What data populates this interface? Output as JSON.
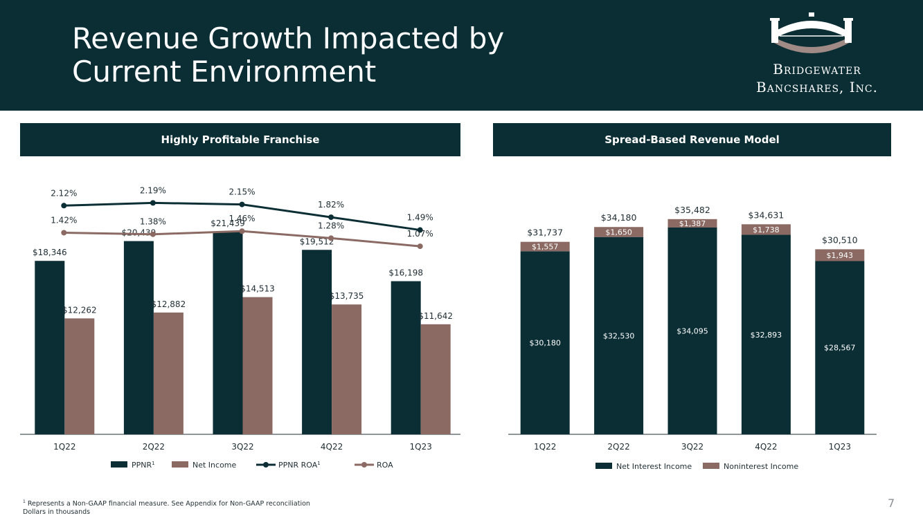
{
  "slide": {
    "title_line1": "Revenue Growth Impacted by",
    "title_line2": "Current Environment",
    "page_number": "7",
    "footnote_line1": "Represents a Non-GAAP financial measure. See Appendix for Non-GAAP reconciliation",
    "footnote_marker": "1",
    "footnote_line2": "Dollars in thousands"
  },
  "logo": {
    "line1": "Bridgewater",
    "line2": "Bancshares, Inc."
  },
  "colors": {
    "dark": "#0b2e35",
    "mauve": "#8a6a63",
    "white": "#ffffff"
  },
  "chart_data": [
    {
      "type": "bar",
      "title": "Highly Profitable Franchise",
      "categories": [
        "1Q22",
        "2Q22",
        "3Q22",
        "4Q22",
        "1Q23"
      ],
      "series": [
        {
          "name": "PPNR",
          "name_sup": "1",
          "kind": "bar",
          "color": "#0b2e35",
          "values": [
            18346,
            20439,
            21439,
            19512,
            16198
          ],
          "labels": [
            "$18,346",
            "$20,439",
            "$21,439",
            "$19,512",
            "$16,198"
          ]
        },
        {
          "name": "Net Income",
          "name_sup": "",
          "kind": "bar",
          "color": "#8a6a63",
          "values": [
            12262,
            12882,
            14513,
            13735,
            11642
          ],
          "labels": [
            "$12,262",
            "$12,882",
            "$14,513",
            "$13,735",
            "$11,642"
          ]
        },
        {
          "name": "PPNR ROA",
          "name_sup": "1",
          "kind": "line",
          "color": "#0b2e35",
          "values": [
            2.12,
            2.19,
            2.15,
            1.82,
            1.49
          ],
          "labels": [
            "2.12%",
            "2.19%",
            "2.15%",
            "1.82%",
            "1.49%"
          ]
        },
        {
          "name": "ROA",
          "name_sup": "",
          "kind": "line",
          "color": "#8a6a63",
          "values": [
            1.42,
            1.38,
            1.46,
            1.28,
            1.07
          ],
          "labels": [
            "1.42%",
            "1.38%",
            "1.46%",
            "1.28%",
            "1.07%"
          ]
        }
      ],
      "legend": "bottom"
    },
    {
      "type": "bar",
      "stacked": true,
      "title": "Spread-Based Revenue Model",
      "categories": [
        "1Q22",
        "2Q22",
        "3Q22",
        "4Q22",
        "1Q23"
      ],
      "totals": [
        31737,
        34180,
        35482,
        34631,
        30510
      ],
      "total_labels": [
        "$31,737",
        "$34,180",
        "$35,482",
        "$34,631",
        "$30,510"
      ],
      "series": [
        {
          "name": "Net Interest Income",
          "color": "#0b2e35",
          "values": [
            30180,
            32530,
            34095,
            32893,
            28567
          ],
          "labels": [
            "$30,180",
            "$32,530",
            "$34,095",
            "$32,893",
            "$28,567"
          ]
        },
        {
          "name": "Noninterest Income",
          "color": "#8a6a63",
          "values": [
            1557,
            1650,
            1387,
            1738,
            1943
          ],
          "labels": [
            "$1,557",
            "$1,650",
            "$1,387",
            "$1,738",
            "$1,943"
          ]
        }
      ],
      "legend": "bottom"
    }
  ]
}
